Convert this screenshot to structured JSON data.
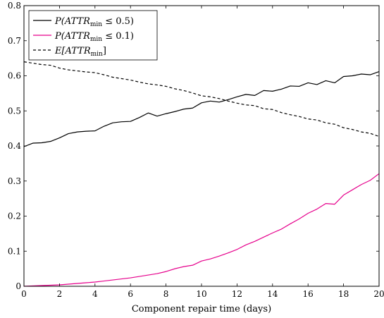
{
  "chart_data": {
    "type": "line",
    "xlabel": "Component repair time (days)",
    "ylabel": "",
    "xlim": [
      0,
      20
    ],
    "ylim": [
      0,
      0.8
    ],
    "xticks": [
      0,
      2,
      4,
      6,
      8,
      10,
      12,
      14,
      16,
      18,
      20
    ],
    "yticks": [
      0,
      0.1,
      0.2,
      0.3,
      0.4,
      0.5,
      0.6,
      0.7,
      0.8
    ],
    "grid": false,
    "legend_position": "top-left",
    "x": [
      0,
      0.5,
      1,
      1.5,
      2,
      2.5,
      3,
      3.5,
      4,
      4.5,
      5,
      5.5,
      6,
      6.5,
      7,
      7.5,
      8,
      8.5,
      9,
      9.5,
      10,
      10.5,
      11,
      11.5,
      12,
      12.5,
      13,
      13.5,
      14,
      14.5,
      15,
      15.5,
      16,
      16.5,
      17,
      17.5,
      18,
      18.5,
      19,
      19.5,
      20
    ],
    "series": [
      {
        "name": "P(ATTR_min ≤ 0.5)",
        "legend_main": "P(ATTR",
        "legend_sub": "min",
        "legend_tail": " ≤ 0.5)",
        "color": "#000000",
        "dash": "solid",
        "values": [
          0.398,
          0.408,
          0.409,
          0.413,
          0.423,
          0.435,
          0.44,
          0.442,
          0.443,
          0.456,
          0.466,
          0.469,
          0.47,
          0.481,
          0.494,
          0.485,
          0.492,
          0.498,
          0.505,
          0.508,
          0.523,
          0.528,
          0.525,
          0.532,
          0.54,
          0.547,
          0.544,
          0.558,
          0.556,
          0.562,
          0.571,
          0.57,
          0.58,
          0.575,
          0.586,
          0.58,
          0.598,
          0.6,
          0.605,
          0.603,
          0.612
        ]
      },
      {
        "name": "P(ATTR_min ≤ 0.1)",
        "legend_main": "P(ATTR",
        "legend_sub": "min",
        "legend_tail": " ≤ 0.1)",
        "color": "#e6008c",
        "dash": "solid",
        "values": [
          0.0,
          0.001,
          0.002,
          0.003,
          0.004,
          0.006,
          0.008,
          0.01,
          0.012,
          0.015,
          0.018,
          0.021,
          0.024,
          0.028,
          0.032,
          0.036,
          0.042,
          0.05,
          0.056,
          0.06,
          0.072,
          0.078,
          0.086,
          0.095,
          0.105,
          0.118,
          0.128,
          0.14,
          0.152,
          0.163,
          0.178,
          0.192,
          0.208,
          0.22,
          0.236,
          0.234,
          0.26,
          0.275,
          0.29,
          0.302,
          0.321
        ]
      },
      {
        "name": "E[ATTR_min]",
        "legend_main": "E[ATTR",
        "legend_sub": "min",
        "legend_tail": "]",
        "color": "#000000",
        "dash": "dashed",
        "values": [
          0.64,
          0.636,
          0.632,
          0.63,
          0.622,
          0.617,
          0.614,
          0.611,
          0.609,
          0.603,
          0.596,
          0.592,
          0.588,
          0.582,
          0.577,
          0.574,
          0.57,
          0.563,
          0.558,
          0.551,
          0.543,
          0.54,
          0.535,
          0.528,
          0.522,
          0.517,
          0.515,
          0.506,
          0.504,
          0.495,
          0.489,
          0.484,
          0.477,
          0.474,
          0.466,
          0.462,
          0.452,
          0.447,
          0.44,
          0.436,
          0.427
        ]
      }
    ]
  }
}
